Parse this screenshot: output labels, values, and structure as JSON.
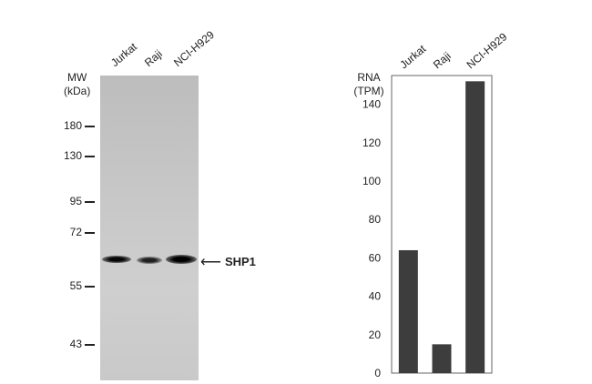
{
  "western_blot": {
    "lanes": [
      "Jurkat",
      "Raji",
      "NCI-H929"
    ],
    "mw_label_line1": "MW",
    "mw_label_line2": "(kDa)",
    "markers": [
      "180",
      "130",
      "95",
      "72",
      "55",
      "43"
    ],
    "target_label": "SHP1",
    "band_intensities": [
      0.9,
      0.55,
      1.0
    ]
  },
  "chart_data": {
    "type": "bar",
    "categories": [
      "Jurkat",
      "Raji",
      "NCI-H929"
    ],
    "values": [
      64,
      15,
      152
    ],
    "ylabel_line1": "RNA",
    "ylabel_line2": "(TPM)",
    "yticks": [
      0,
      20,
      40,
      60,
      80,
      100,
      120,
      140
    ],
    "ylim": [
      0,
      155
    ],
    "bar_color": "#3d3d3d"
  }
}
